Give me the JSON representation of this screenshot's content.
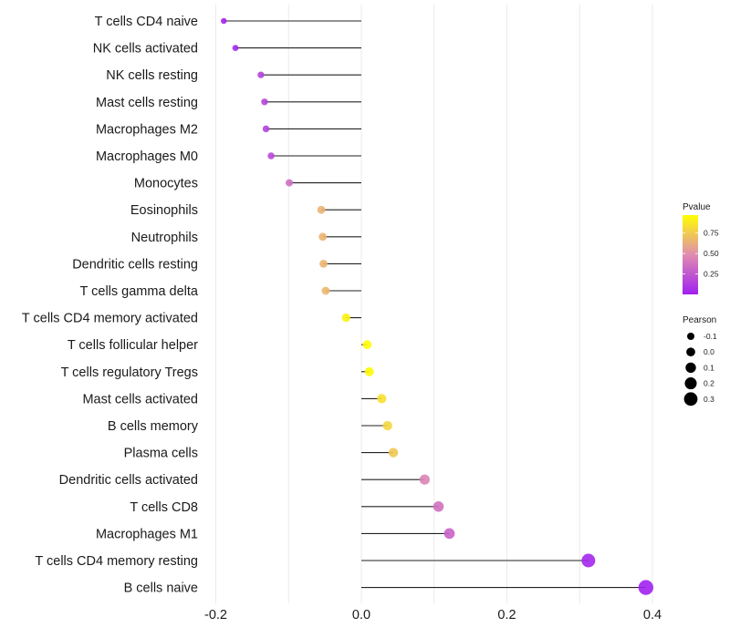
{
  "chart_data": {
    "type": "scatter",
    "subtype": "lollipop",
    "title": "",
    "xlabel": "",
    "ylabel": "",
    "xlim": [
      -0.215,
      0.41
    ],
    "xticks": [
      -0.2,
      0.0,
      0.2,
      0.4
    ],
    "xtick_labels": [
      "-0.2",
      "0.0",
      "0.2",
      "0.4"
    ],
    "x_minor_grid": [
      -0.1,
      0.1,
      0.3
    ],
    "grid": true,
    "baseline": 0.0,
    "categories": [
      "T cells CD4 naive",
      "NK cells activated",
      "NK cells resting",
      "Mast cells resting",
      "Macrophages M2",
      "Macrophages M0",
      "Monocytes",
      "Eosinophils",
      "Neutrophils",
      "Dendritic cells resting",
      "T cells gamma delta",
      "T cells CD4 memory activated",
      "T cells follicular helper",
      "T cells regulatory  Tregs ",
      "Mast cells activated",
      "B cells memory",
      "Plasma cells",
      "Dendritic cells activated",
      "T cells CD8",
      "Macrophages M1",
      "T cells CD4 memory resting",
      "B cells naive"
    ],
    "pearson": [
      -0.189,
      -0.173,
      -0.138,
      -0.133,
      -0.131,
      -0.124,
      -0.099,
      -0.055,
      -0.053,
      -0.052,
      -0.049,
      -0.021,
      0.008,
      0.011,
      0.028,
      0.036,
      0.044,
      0.087,
      0.106,
      0.121,
      0.312,
      0.391
    ],
    "pvalue": [
      0.02,
      0.04,
      0.15,
      0.16,
      0.16,
      0.18,
      0.35,
      0.65,
      0.66,
      0.66,
      0.67,
      0.92,
      0.96,
      0.95,
      0.84,
      0.8,
      0.74,
      0.45,
      0.36,
      0.3,
      0.03,
      0.01
    ],
    "legend_color": {
      "title": "Pvalue",
      "range": [
        0.0,
        0.97
      ],
      "ticks": [
        0.25,
        0.5,
        0.75
      ],
      "tick_labels": [
        "0.25",
        "0.50",
        "0.75"
      ],
      "low_color": "#a020f0",
      "mid_color": "#e08cb0",
      "high_color": "#ffff00",
      "placement": "right"
    },
    "legend_size": {
      "title": "Pearson",
      "values": [
        -0.1,
        0.0,
        0.1,
        0.2,
        0.3
      ],
      "labels": [
        "-0.1",
        "0.0",
        "0.1",
        "0.2",
        "0.3"
      ],
      "placement": "right"
    }
  }
}
